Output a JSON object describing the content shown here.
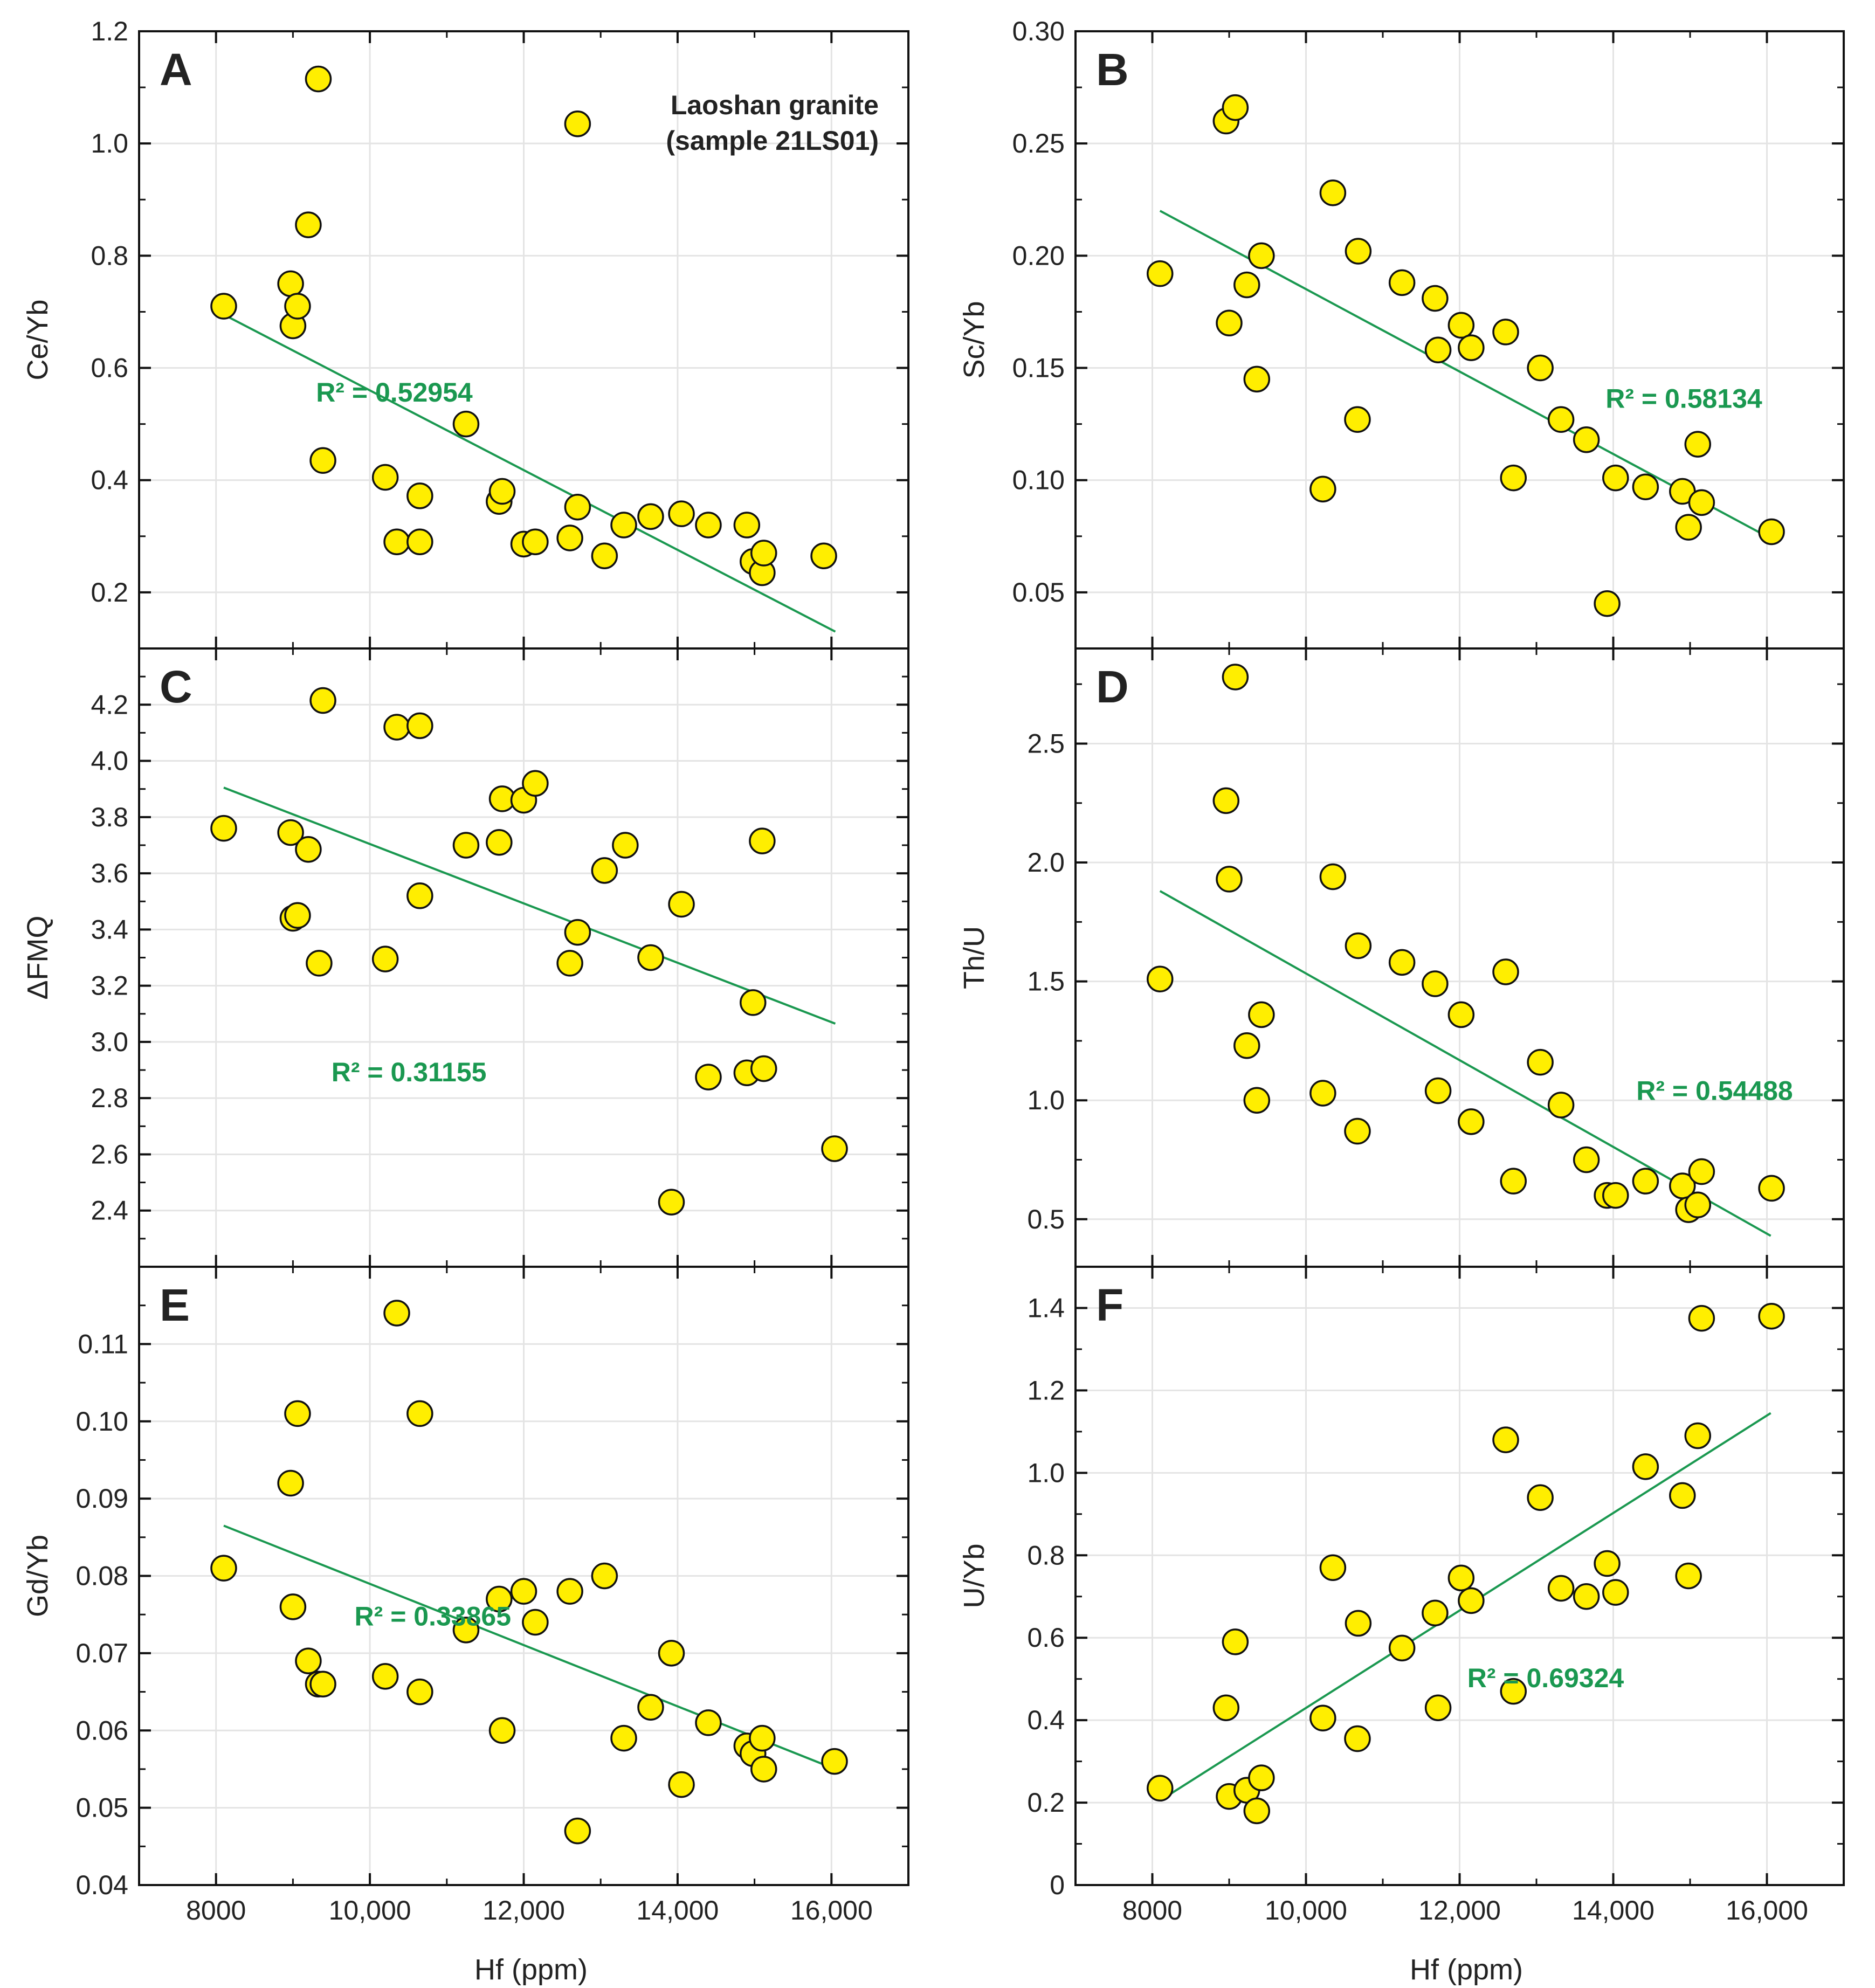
{
  "figure": {
    "note_line1": "Laoshan granite",
    "note_line2": "(sample 21LS01)",
    "xlabel": "Hf (ppm)",
    "x_ticks": [
      8000,
      10000,
      12000,
      14000,
      16000
    ],
    "x_tick_labels": [
      "8000",
      "10,000",
      "12,000",
      "14,000",
      "16,000"
    ],
    "xlim": [
      7000,
      17000
    ],
    "point_color": "#ffee00",
    "line_color": "#1a9850",
    "r2_color": "#1a9850"
  },
  "chart_data": [
    {
      "type": "scatter",
      "panel": "A",
      "ylabel": "Ce/Yb",
      "ylim": [
        0.1,
        1.2
      ],
      "y_ticks": [
        0.2,
        0.4,
        0.6,
        0.8,
        1.0,
        1.2
      ],
      "y_tick_labels": [
        "0.2",
        "0.4",
        "0.6",
        "0.8",
        "1.0",
        "1.2"
      ],
      "r2_text": "R² = 0.52954",
      "fit": {
        "x": [
          8100,
          16050
        ],
        "y": [
          0.695,
          0.13
        ]
      },
      "x": [
        8100,
        8970,
        9000,
        9060,
        9200,
        9330,
        9390,
        10200,
        10350,
        10650,
        10650,
        11250,
        11680,
        11720,
        12000,
        12150,
        12600,
        12700,
        12700,
        13050,
        13300,
        13650,
        14050,
        14400,
        14900,
        14980,
        15100,
        15120,
        15900
      ],
      "y": [
        0.71,
        0.75,
        0.675,
        0.71,
        0.855,
        1.115,
        0.435,
        0.405,
        0.29,
        0.29,
        0.372,
        0.5,
        0.362,
        0.38,
        0.286,
        0.29,
        0.297,
        1.035,
        0.352,
        0.265,
        0.32,
        0.335,
        0.34,
        0.32,
        0.32,
        0.255,
        0.235,
        0.27,
        0.265
      ]
    },
    {
      "type": "scatter",
      "panel": "B",
      "ylabel": "Sc/Yb",
      "ylim": [
        0.025,
        0.3
      ],
      "y_ticks": [
        0.05,
        0.1,
        0.15,
        0.2,
        0.25,
        0.3
      ],
      "y_tick_labels": [
        "0.05",
        "0.10",
        "0.15",
        "0.20",
        "0.25",
        "0.30"
      ],
      "r2_text": "R² = 0.58134",
      "fit": {
        "x": [
          8100,
          16050
        ],
        "y": [
          0.22,
          0.074
        ]
      },
      "x": [
        8100,
        8960,
        9000,
        9080,
        9230,
        9360,
        9420,
        10220,
        10350,
        10670,
        10680,
        11250,
        11680,
        11720,
        12020,
        12150,
        12600,
        12700,
        13050,
        13320,
        13650,
        14030,
        14420,
        14900,
        14980,
        15100,
        15150,
        13920,
        16060
      ],
      "y": [
        0.192,
        0.26,
        0.17,
        0.266,
        0.187,
        0.145,
        0.2,
        0.096,
        0.228,
        0.127,
        0.202,
        0.188,
        0.181,
        0.158,
        0.169,
        0.159,
        0.166,
        0.101,
        0.15,
        0.127,
        0.118,
        0.101,
        0.097,
        0.095,
        0.079,
        0.116,
        0.09,
        0.045,
        0.077
      ]
    },
    {
      "type": "scatter",
      "panel": "C",
      "ylabel": "ΔFMQ",
      "ylim": [
        2.2,
        4.4
      ],
      "y_ticks": [
        2.4,
        2.6,
        2.8,
        3.0,
        3.2,
        3.4,
        3.6,
        3.8,
        4.0,
        4.2
      ],
      "y_tick_labels": [
        "2.4",
        "2.6",
        "2.8",
        "3.0",
        "3.2",
        "3.4",
        "3.6",
        "3.8",
        "4.0",
        "4.2"
      ],
      "r2_text": "R² = 0.31155",
      "fit": {
        "x": [
          8100,
          16050
        ],
        "y": [
          3.905,
          3.065
        ]
      },
      "x": [
        8100,
        8970,
        9000,
        9060,
        9200,
        9340,
        9390,
        10200,
        10350,
        10650,
        10650,
        11250,
        11680,
        11720,
        12000,
        12150,
        12600,
        12700,
        13050,
        13320,
        13650,
        14050,
        14400,
        14900,
        14980,
        15100,
        15120,
        13920,
        16040
      ],
      "y": [
        3.76,
        3.745,
        3.44,
        3.45,
        3.685,
        3.28,
        4.215,
        3.295,
        4.12,
        3.52,
        4.125,
        3.7,
        3.71,
        3.865,
        3.86,
        3.92,
        3.28,
        3.39,
        3.61,
        3.7,
        3.3,
        3.49,
        2.875,
        2.89,
        3.14,
        3.715,
        2.905,
        2.43,
        2.62
      ]
    },
    {
      "type": "scatter",
      "panel": "D",
      "ylabel": "Th/U",
      "ylim": [
        0.3,
        2.9
      ],
      "y_ticks": [
        0.5,
        1.0,
        1.5,
        2.0,
        2.5
      ],
      "y_tick_labels": [
        "0.5",
        "1.0",
        "1.5",
        "2.0",
        "2.5"
      ],
      "r2_text": "R² = 0.54488",
      "fit": {
        "x": [
          8100,
          16050
        ],
        "y": [
          1.88,
          0.43
        ]
      },
      "x": [
        8100,
        8960,
        9000,
        9080,
        9230,
        9360,
        9420,
        10220,
        10350,
        10670,
        10680,
        11250,
        11680,
        11720,
        12020,
        12150,
        12600,
        12700,
        13050,
        13320,
        13650,
        13920,
        14030,
        14420,
        14900,
        14980,
        15100,
        15150,
        16060
      ],
      "y": [
        1.51,
        2.26,
        1.93,
        2.78,
        1.23,
        1.0,
        1.36,
        1.03,
        1.94,
        0.87,
        1.65,
        1.58,
        1.49,
        1.04,
        1.36,
        0.91,
        1.54,
        0.66,
        1.16,
        0.98,
        0.75,
        0.6,
        0.6,
        0.66,
        0.64,
        0.54,
        0.56,
        0.7,
        0.63
      ]
    },
    {
      "type": "scatter",
      "panel": "E",
      "ylabel": "Gd/Yb",
      "ylim": [
        0.04,
        0.12
      ],
      "y_ticks": [
        0.04,
        0.05,
        0.06,
        0.07,
        0.08,
        0.09,
        0.1,
        0.11
      ],
      "y_tick_labels": [
        "0.04",
        "0.05",
        "0.06",
        "0.07",
        "0.08",
        "0.09",
        "0.10",
        "0.11"
      ],
      "r2_text": "R² = 0.33865",
      "fit": {
        "x": [
          8100,
          16050
        ],
        "y": [
          0.0865,
          0.055
        ]
      },
      "x": [
        8100,
        8970,
        9000,
        9060,
        9200,
        9330,
        9390,
        10200,
        10350,
        10650,
        10650,
        11250,
        11680,
        11720,
        12000,
        12150,
        12600,
        12700,
        13050,
        13300,
        13650,
        13920,
        14050,
        14400,
        14900,
        14980,
        15100,
        15120,
        16040
      ],
      "y": [
        0.081,
        0.092,
        0.076,
        0.101,
        0.069,
        0.066,
        0.066,
        0.067,
        0.114,
        0.065,
        0.101,
        0.073,
        0.077,
        0.06,
        0.078,
        0.074,
        0.078,
        0.047,
        0.08,
        0.059,
        0.063,
        0.07,
        0.053,
        0.061,
        0.058,
        0.057,
        0.059,
        0.055,
        0.056
      ]
    },
    {
      "type": "scatter",
      "panel": "F",
      "ylabel": "U/Yb",
      "ylim": [
        0,
        1.5
      ],
      "y_ticks": [
        0,
        0.2,
        0.4,
        0.6,
        0.8,
        1.0,
        1.2,
        1.4
      ],
      "y_tick_labels": [
        "0",
        "0.2",
        "0.4",
        "0.6",
        "0.8",
        "1.0",
        "1.2",
        "1.4"
      ],
      "r2_text": "R² = 0.69324",
      "fit": {
        "x": [
          8100,
          16050
        ],
        "y": [
          0.205,
          1.145
        ]
      },
      "x": [
        8100,
        8960,
        9000,
        9080,
        9230,
        9360,
        9420,
        10220,
        10350,
        10670,
        10680,
        11250,
        11680,
        11720,
        12020,
        12150,
        12600,
        12700,
        13050,
        13320,
        13650,
        13920,
        14030,
        14420,
        14900,
        14980,
        15100,
        15150,
        16060
      ],
      "y": [
        0.235,
        0.43,
        0.215,
        0.59,
        0.23,
        0.18,
        0.26,
        0.405,
        0.77,
        0.355,
        0.635,
        0.575,
        0.66,
        0.43,
        0.745,
        0.69,
        1.08,
        0.47,
        0.94,
        0.72,
        0.7,
        0.78,
        0.71,
        1.015,
        0.945,
        0.75,
        1.09,
        1.375,
        1.38
      ]
    }
  ]
}
